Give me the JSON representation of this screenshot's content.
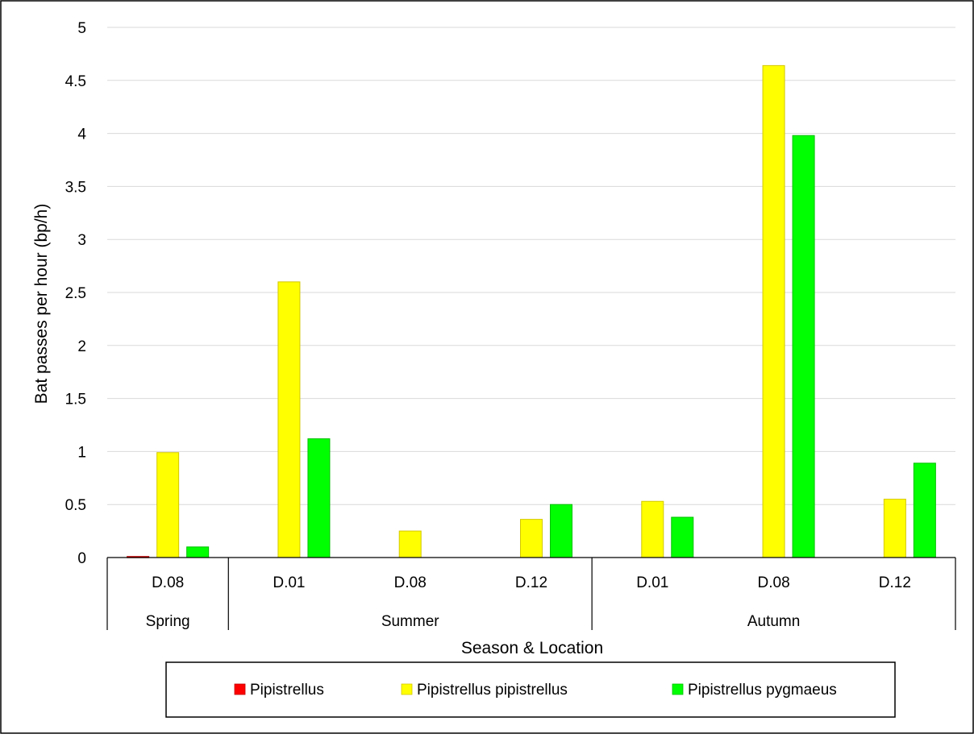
{
  "chart_data": {
    "type": "bar",
    "categories": [
      {
        "season": "Spring",
        "location": "D.08"
      },
      {
        "season": "Summer",
        "location": "D.01"
      },
      {
        "season": "Summer",
        "location": "D.08"
      },
      {
        "season": "Summer",
        "location": "D.12"
      },
      {
        "season": "Autumn",
        "location": "D.01"
      },
      {
        "season": "Autumn",
        "location": "D.08"
      },
      {
        "season": "Autumn",
        "location": "D.12"
      }
    ],
    "seasons": [
      "Spring",
      "Summer",
      "Autumn"
    ],
    "series": [
      {
        "name": "Pipistrellus",
        "color": "#ff0000",
        "stroke": "#c00000",
        "values": [
          0.01,
          0,
          0,
          0,
          0,
          0,
          0
        ]
      },
      {
        "name": "Pipistrellus pipistrellus",
        "color": "#ffff00",
        "stroke": "#d4c800",
        "values": [
          0.99,
          2.6,
          0.25,
          0.36,
          0.53,
          4.64,
          0.55
        ]
      },
      {
        "name": "Pipistrellus pygmaeus",
        "color": "#00ff00",
        "stroke": "#00c000",
        "values": [
          0.1,
          1.12,
          0,
          0.5,
          0.38,
          3.98,
          0.89
        ]
      }
    ],
    "xlabel": "Season & Location",
    "ylabel": "Bat passes per hour (bp/h)",
    "ylim": [
      0,
      5
    ],
    "yticks": [
      "0",
      "0.5",
      "1",
      "1.5",
      "2",
      "2.5",
      "3",
      "3.5",
      "4",
      "4.5",
      "5"
    ],
    "grid": true,
    "legend_position": "bottom"
  }
}
